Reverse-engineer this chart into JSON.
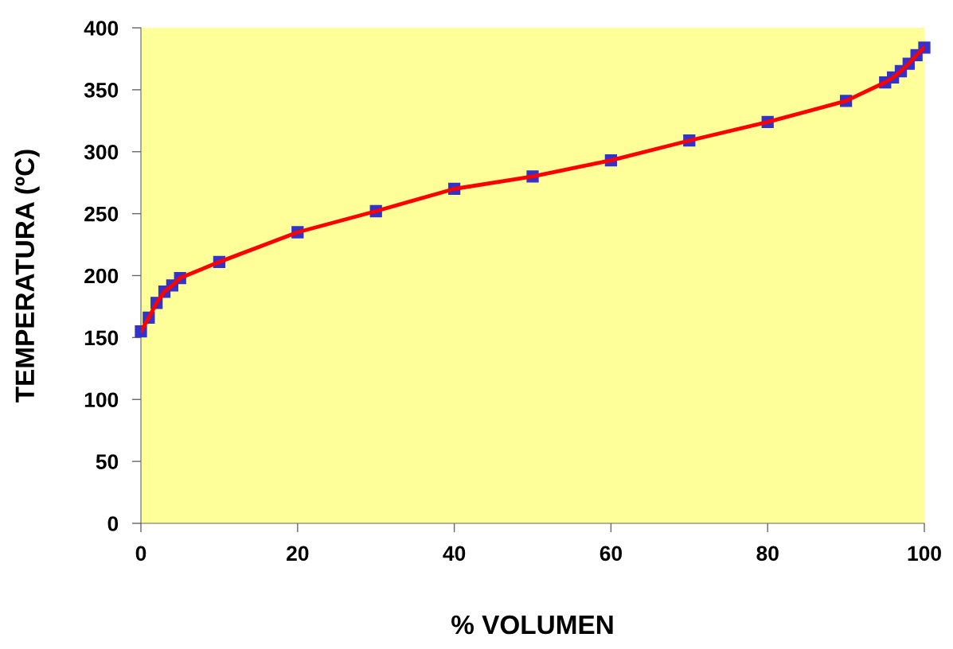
{
  "chart_data": {
    "type": "line",
    "xlabel": "% VOLUMEN",
    "ylabel": "TEMPERATURA (ºC)",
    "x": [
      0,
      1,
      2,
      3,
      4,
      5,
      10,
      20,
      30,
      40,
      50,
      60,
      70,
      80,
      90,
      95,
      96,
      97,
      98,
      99,
      100
    ],
    "series": [
      {
        "color": "#ff0000",
        "values": [
          155,
          166,
          178,
          187,
          192,
          198,
          211,
          235,
          252,
          270,
          280,
          293,
          309,
          324,
          341,
          356,
          360,
          365,
          371,
          378,
          384
        ]
      },
      {
        "type": "scatter",
        "marker": "square",
        "color": "#3333cc",
        "values": [
          155,
          166,
          178,
          187,
          192,
          198,
          211,
          235,
          252,
          270,
          280,
          293,
          309,
          324,
          341,
          356,
          360,
          365,
          371,
          378,
          384
        ]
      }
    ],
    "xlim": [
      0,
      100
    ],
    "xticks": [
      0,
      20,
      40,
      60,
      80,
      100
    ],
    "ylim": [
      0,
      400
    ],
    "yticks": [
      0,
      50,
      100,
      150,
      200,
      250,
      300,
      350,
      400
    ],
    "grid": false,
    "legend": false,
    "line_style": "solid"
  }
}
